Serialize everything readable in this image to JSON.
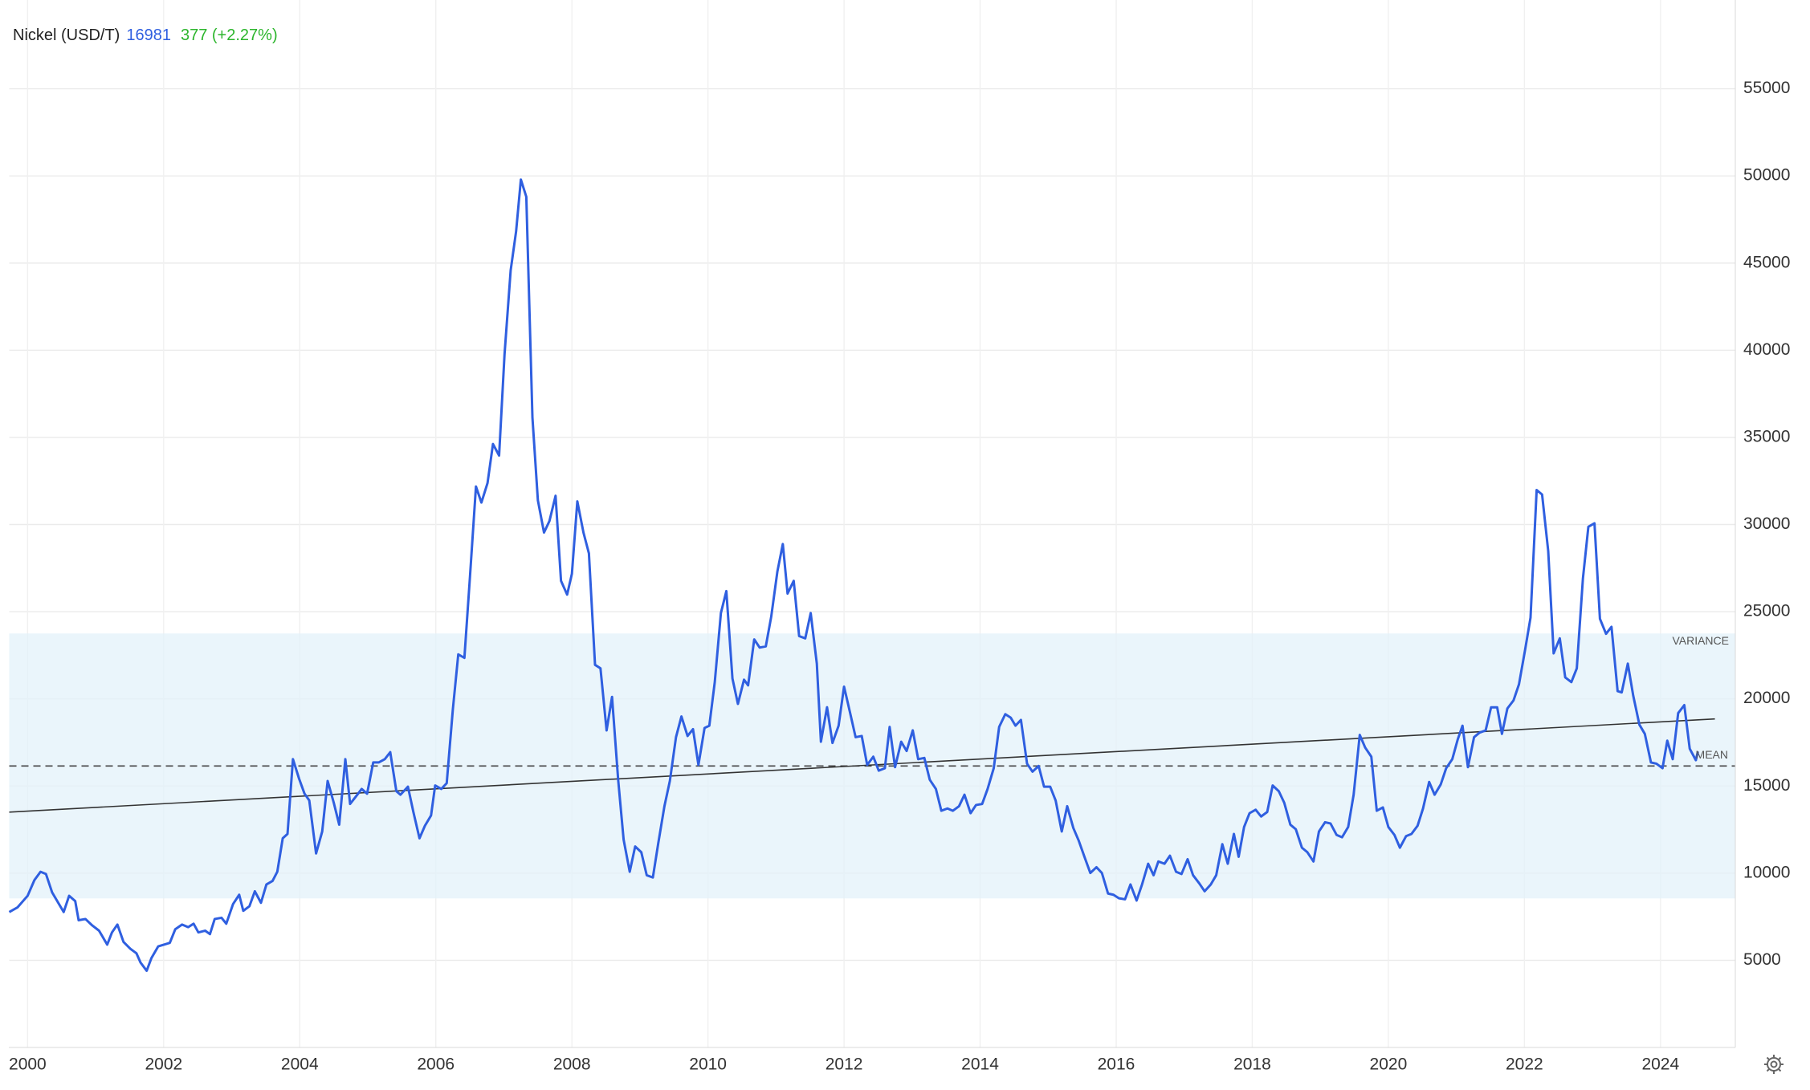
{
  "chart_data": {
    "type": "line",
    "title": "Nickel (USD/T)",
    "last": 16981,
    "change": "377 (+2.27%)",
    "xlim": [
      1999.73,
      2025.1
    ],
    "ylim": [
      0,
      60000
    ],
    "xticks": [
      2000,
      2002,
      2004,
      2006,
      2008,
      2010,
      2012,
      2014,
      2016,
      2018,
      2020,
      2022,
      2024
    ],
    "yticks": [
      5000,
      10000,
      15000,
      20000,
      25000,
      30000,
      35000,
      40000,
      45000,
      50000,
      55000
    ],
    "grid": true,
    "mean": {
      "label": "MEAN",
      "value": 16150
    },
    "variance": {
      "label": "VARIANCE",
      "range": [
        8550,
        23750
      ]
    },
    "trend": {
      "x": [
        1999.73,
        2024.8
      ],
      "values": [
        13500,
        18850
      ]
    },
    "x": [
      1999.73,
      1999.85,
      2000.0,
      2000.1,
      2000.19,
      2000.27,
      2000.36,
      2000.53,
      2000.61,
      2000.7,
      2000.75,
      2000.85,
      2000.95,
      2001.05,
      2001.17,
      2001.24,
      2001.32,
      2001.41,
      2001.51,
      2001.6,
      2001.66,
      2001.75,
      2001.82,
      2001.92,
      2002.09,
      2002.17,
      2002.27,
      2002.36,
      2002.44,
      2002.51,
      2002.61,
      2002.68,
      2002.75,
      2002.85,
      2002.92,
      2003.02,
      2003.11,
      2003.17,
      2003.26,
      2003.34,
      2003.43,
      2003.51,
      2003.6,
      2003.67,
      2003.75,
      2003.82,
      2003.9,
      2003.99,
      2004.07,
      2004.14,
      2004.24,
      2004.33,
      2004.41,
      2004.5,
      2004.58,
      2004.67,
      2004.74,
      2004.82,
      2004.91,
      2004.99,
      2005.08,
      2005.16,
      2005.25,
      2005.33,
      2005.42,
      2005.48,
      2005.59,
      2005.67,
      2005.76,
      2005.84,
      2005.93,
      2005.99,
      2006.08,
      2006.16,
      2006.25,
      2006.33,
      2006.42,
      2006.5,
      2006.59,
      2006.67,
      2006.76,
      2006.84,
      2006.93,
      2007.01,
      2007.1,
      2007.18,
      2007.25,
      2007.33,
      2007.42,
      2007.5,
      2007.59,
      2007.67,
      2007.76,
      2007.84,
      2007.93,
      2008.0,
      2008.08,
      2008.17,
      2008.25,
      2008.34,
      2008.42,
      2008.51,
      2008.59,
      2008.68,
      2008.76,
      2008.85,
      2008.93,
      2009.02,
      2009.1,
      2009.19,
      2009.27,
      2009.36,
      2009.44,
      2009.53,
      2009.61,
      2009.7,
      2009.78,
      2009.86,
      2009.95,
      2010.02,
      2010.1,
      2010.19,
      2010.27,
      2010.36,
      2010.44,
      2010.53,
      2010.59,
      2010.68,
      2010.76,
      2010.85,
      2010.93,
      2011.02,
      2011.1,
      2011.17,
      2011.26,
      2011.34,
      2011.43,
      2011.51,
      2011.6,
      2011.66,
      2011.75,
      2011.83,
      2011.92,
      2012.0,
      2012.09,
      2012.17,
      2012.26,
      2012.34,
      2012.43,
      2012.51,
      2012.6,
      2012.67,
      2012.75,
      2012.84,
      2012.92,
      2013.01,
      2013.09,
      2013.18,
      2013.26,
      2013.35,
      2013.43,
      2013.52,
      2013.6,
      2013.69,
      2013.77,
      2013.86,
      2013.94,
      2014.03,
      2014.11,
      2014.2,
      2014.28,
      2014.37,
      2014.45,
      2014.52,
      2014.6,
      2014.69,
      2014.77,
      2014.86,
      2014.94,
      2015.03,
      2015.11,
      2015.2,
      2015.28,
      2015.37,
      2015.45,
      2015.54,
      2015.62,
      2015.71,
      2015.79,
      2015.88,
      2015.96,
      2016.04,
      2016.13,
      2016.21,
      2016.3,
      2016.38,
      2016.47,
      2016.55,
      2016.62,
      2016.71,
      2016.79,
      2016.88,
      2016.96,
      2017.05,
      2017.13,
      2017.22,
      2017.3,
      2017.39,
      2017.47,
      2017.56,
      2017.64,
      2017.73,
      2017.8,
      2017.88,
      2017.96,
      2018.05,
      2018.13,
      2018.22,
      2018.3,
      2018.39,
      2018.47,
      2018.56,
      2018.64,
      2018.73,
      2018.81,
      2018.9,
      2018.98,
      2019.07,
      2019.15,
      2019.24,
      2019.32,
      2019.41,
      2019.49,
      2019.58,
      2019.66,
      2019.75,
      2019.83,
      2019.92,
      2020.0,
      2020.09,
      2020.17,
      2020.26,
      2020.34,
      2020.43,
      2020.51,
      2020.6,
      2020.68,
      2020.77,
      2020.85,
      2020.94,
      2021.02,
      2021.09,
      2021.17,
      2021.26,
      2021.34,
      2021.43,
      2021.51,
      2021.6,
      2021.67,
      2021.75,
      2021.84,
      2021.92,
      2022.01,
      2022.09,
      2022.18,
      2022.26,
      2022.35,
      2022.43,
      2022.52,
      2022.6,
      2022.69,
      2022.77,
      2022.86,
      2022.94,
      2023.03,
      2023.11,
      2023.2,
      2023.28,
      2023.37,
      2023.43,
      2023.52,
      2023.6,
      2023.69,
      2023.77,
      2023.86,
      2023.94,
      2024.03,
      2024.1,
      2024.18,
      2024.26,
      2024.35,
      2024.43,
      2024.52,
      2024.55
    ],
    "series": [
      {
        "name": "Nickel (USD/T)",
        "color": "#2f5fe0",
        "values": [
          7770,
          8030,
          8700,
          9600,
          10080,
          9950,
          8900,
          7770,
          8700,
          8400,
          7300,
          7370,
          7000,
          6700,
          5900,
          6600,
          7050,
          6050,
          5660,
          5400,
          4870,
          4400,
          5130,
          5800,
          6000,
          6780,
          7050,
          6900,
          7100,
          6600,
          6700,
          6500,
          7370,
          7440,
          7100,
          8230,
          8760,
          7840,
          8100,
          8960,
          8300,
          9350,
          9550,
          10080,
          12000,
          12250,
          16540,
          15420,
          14560,
          14170,
          11130,
          12390,
          15290,
          14040,
          12780,
          16540,
          13970,
          14370,
          14830,
          14560,
          16350,
          16350,
          16540,
          16940,
          14700,
          14500,
          14960,
          13510,
          12000,
          12720,
          13310,
          15030,
          14830,
          15160,
          19380,
          22550,
          22350,
          26900,
          32180,
          31260,
          32380,
          34620,
          33960,
          39770,
          44580,
          46820,
          49790,
          48800,
          36140,
          31390,
          29540,
          30200,
          31650,
          26770,
          25980,
          27170,
          31330,
          29540,
          28350,
          21950,
          21750,
          18190,
          20110,
          15360,
          11930,
          10080,
          11530,
          11200,
          9880,
          9750,
          11730,
          13840,
          15290,
          17800,
          18990,
          17870,
          18260,
          16210,
          18330,
          18460,
          20960,
          24920,
          26180,
          21160,
          19710,
          21100,
          20770,
          23410,
          22940,
          23010,
          24720,
          27300,
          28880,
          26040,
          26770,
          23600,
          23470,
          24920,
          22020,
          17540,
          19520,
          17470,
          18460,
          20700,
          19180,
          17800,
          17870,
          16210,
          16680,
          15880,
          16020,
          18390,
          16080,
          17540,
          17010,
          18190,
          16540,
          16610,
          15360,
          14830,
          13580,
          13710,
          13580,
          13840,
          14500,
          13440,
          13910,
          13970,
          14830,
          16020,
          18390,
          19120,
          18920,
          18460,
          18790,
          16280,
          15820,
          16150,
          14960,
          14960,
          14170,
          12390,
          13840,
          12590,
          11860,
          10870,
          10010,
          10340,
          10010,
          8830,
          8760,
          8560,
          8500,
          9350,
          8430,
          9350,
          10540,
          9880,
          10670,
          10540,
          11000,
          10080,
          9950,
          10800,
          9880,
          9420,
          8960,
          9350,
          9880,
          11660,
          10540,
          12250,
          10940,
          12650,
          13440,
          13640,
          13250,
          13510,
          15030,
          14700,
          14040,
          12780,
          12520,
          11460,
          11200,
          10670,
          12390,
          12920,
          12850,
          12190,
          12060,
          12650,
          14500,
          17930,
          17200,
          16680,
          13580,
          13770,
          12650,
          12190,
          11460,
          12120,
          12250,
          12720,
          13710,
          15230,
          14500,
          15090,
          16020,
          16540,
          17670,
          18460,
          16080,
          17800,
          18060,
          18190,
          19510,
          19510,
          17990,
          19450,
          19910,
          20830,
          22810,
          24660,
          31980,
          31720,
          28480,
          22610,
          23470,
          21230,
          20960,
          21750,
          26900,
          29870,
          30070,
          24590,
          23730,
          24130,
          20440,
          20370,
          22020,
          20170,
          18520,
          17990,
          16350,
          16280,
          16020,
          17600,
          16540,
          19180,
          19640,
          17140,
          16480,
          16981
        ]
      }
    ]
  }
}
